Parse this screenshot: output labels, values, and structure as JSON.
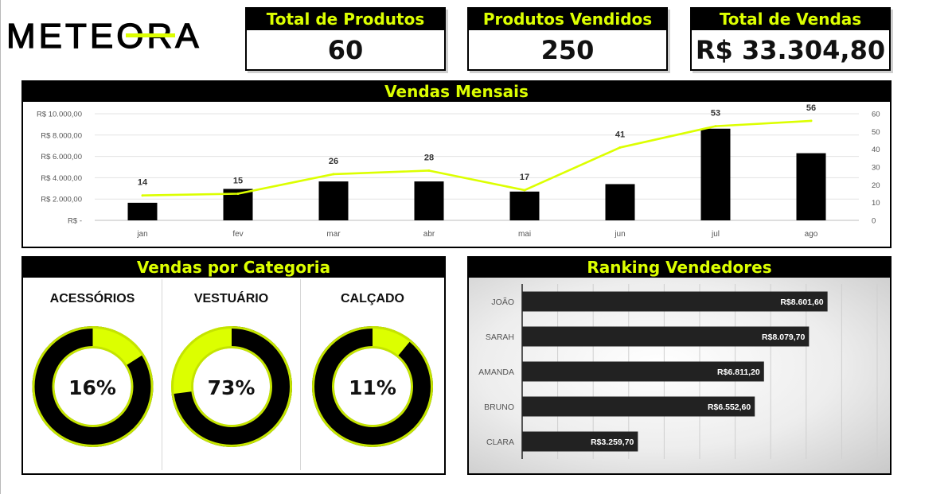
{
  "brand": {
    "logo_text": "METEORA",
    "accent_color": "#dcff00",
    "dark_color": "#000000"
  },
  "kpis": [
    {
      "label": "Total de Produtos",
      "value": "60"
    },
    {
      "label": "Produtos Vendidos",
      "value": "250"
    },
    {
      "label": "Total de Vendas",
      "value": "R$ 33.304,80"
    }
  ],
  "panels": {
    "monthly_title": "Vendas Mensais",
    "category_title": "Vendas por Categoria",
    "ranking_title": "Ranking Vendedores"
  },
  "chart_data": [
    {
      "type": "bar",
      "title": "Vendas Mensais",
      "categories": [
        "jan",
        "fev",
        "mar",
        "abr",
        "mai",
        "jun",
        "jul",
        "ago"
      ],
      "series": [
        {
          "type": "bar",
          "axis": "left",
          "color": "#000000",
          "values": [
            1650,
            2950,
            3650,
            3650,
            2700,
            3400,
            8600,
            6300
          ]
        },
        {
          "type": "line",
          "axis": "right",
          "color": "#dcff00",
          "values": [
            14,
            15,
            26,
            28,
            17,
            41,
            53,
            56
          ],
          "labels": [
            "14",
            "15",
            "26",
            "28",
            "17",
            "41",
            "53",
            "56"
          ]
        }
      ],
      "y_left": {
        "ylim": [
          0,
          10000
        ],
        "ticks": [
          "R$ -",
          "R$ 2.000,00",
          "R$ 4.000,00",
          "R$ 6.000,00",
          "R$ 8.000,00",
          "R$ 10.000,00"
        ]
      },
      "y_right": {
        "ylim": [
          0,
          60
        ],
        "ticks": [
          "0",
          "10",
          "20",
          "30",
          "40",
          "50",
          "60"
        ]
      },
      "grid": true
    },
    {
      "type": "pie",
      "title": "Vendas por Categoria",
      "donuts": [
        {
          "label": "ACESSÓRIOS",
          "pct_label": "16%",
          "value": 0.16,
          "color": "#dcff00",
          "rest_color": "#000000"
        },
        {
          "label": "VESTUÁRIO",
          "pct_label": "73%",
          "value": 0.73,
          "color": "#000000",
          "rest_color": "#dcff00"
        },
        {
          "label": "CALÇADO",
          "pct_label": "11%",
          "value": 0.11,
          "color": "#dcff00",
          "rest_color": "#000000"
        }
      ]
    },
    {
      "type": "bar",
      "orientation": "horizontal",
      "title": "Ranking Vendedores",
      "categories": [
        "JOÃO",
        "SARAH",
        "AMANDA",
        "BRUNO",
        "CLARA"
      ],
      "values": [
        8601.6,
        8079.7,
        6811.2,
        6552.6,
        3259.7
      ],
      "labels": [
        "R$8.601,60",
        "R$8.079,70",
        "R$6.811,20",
        "R$6.552,60",
        "R$3.259,70"
      ],
      "xlim": [
        0,
        10000
      ],
      "grid": true,
      "bar_color": "#222222"
    }
  ]
}
